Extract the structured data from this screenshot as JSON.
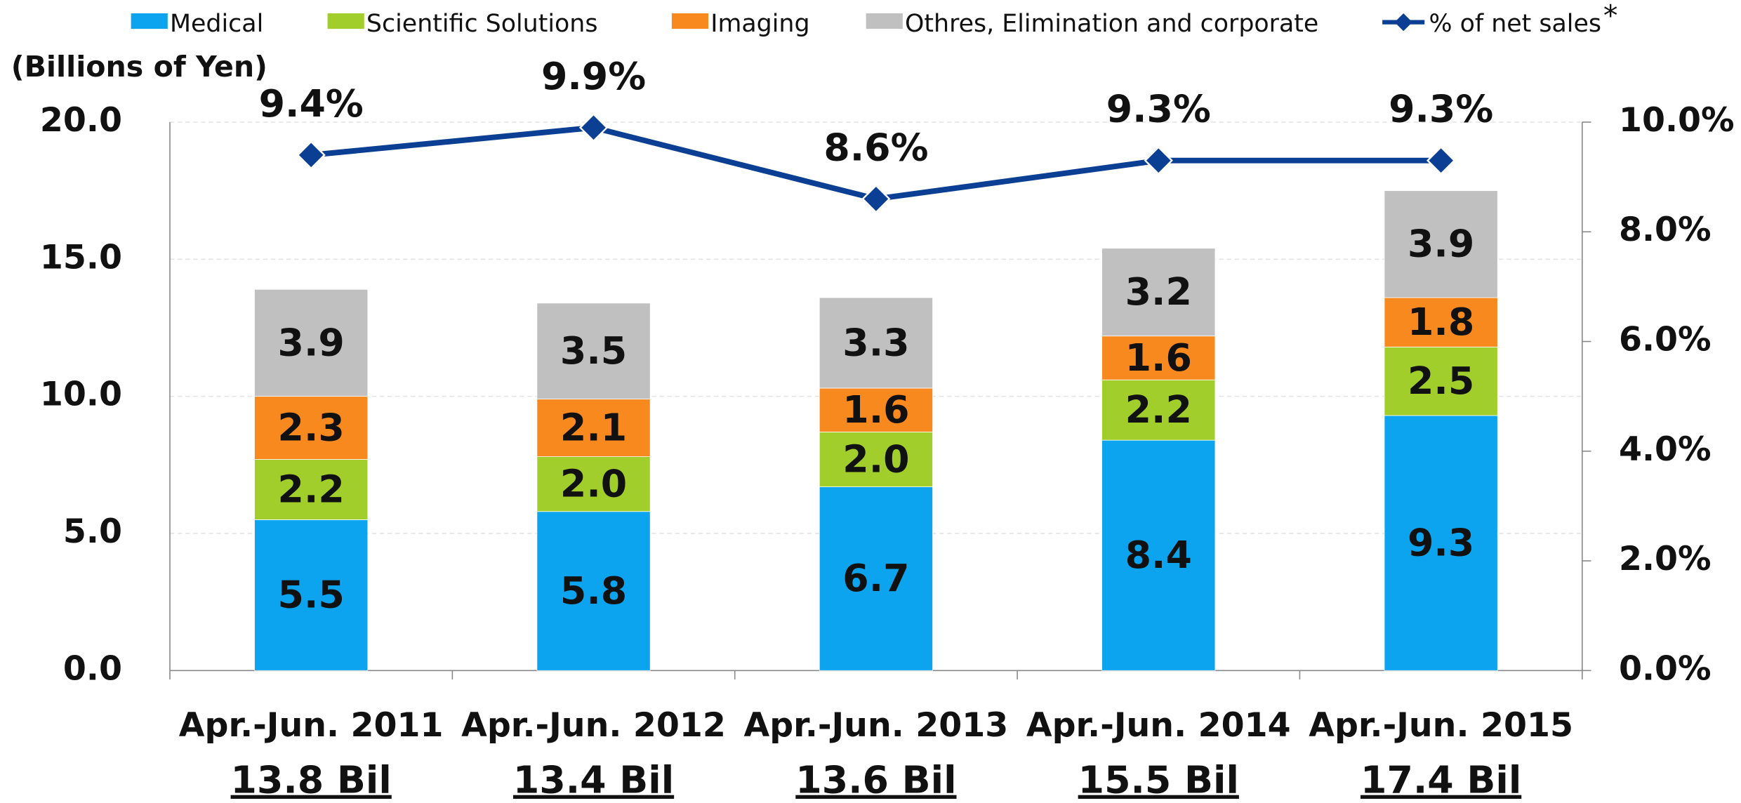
{
  "chart_data": {
    "type": "stacked_bar_line",
    "y_axis_label": "(Billions of Yen)",
    "categories": [
      "Apr.-Jun. 2011",
      "Apr.-Jun. 2012",
      "Apr.-Jun. 2013",
      "Apr.-Jun. 2014",
      "Apr.-Jun. 2015"
    ],
    "totals": [
      "13.8 Bil",
      "13.4 Bil",
      "13.6 Bil",
      "15.5 Bil",
      "17.4 Bil"
    ],
    "series": [
      {
        "name": "Medical",
        "color": "#0ca4ee",
        "values": [
          5.5,
          5.8,
          6.7,
          8.4,
          9.3
        ],
        "value_labels": [
          "5.5",
          "5.8",
          "6.7",
          "8.4",
          "9.3"
        ]
      },
      {
        "name": "Scientific Solutions",
        "color": "#a2ce2b",
        "values": [
          2.2,
          2.0,
          2.0,
          2.2,
          2.5
        ],
        "value_labels": [
          "2.2",
          "2.0",
          "2.0",
          "2.2",
          "2.5"
        ]
      },
      {
        "name": "Imaging",
        "color": "#f7891f",
        "values": [
          2.3,
          2.1,
          1.6,
          1.6,
          1.8
        ],
        "value_labels": [
          "2.3",
          "2.1",
          "1.6",
          "1.6",
          "1.8"
        ]
      },
      {
        "name": "Othres, Elimination and corporate",
        "color": "#c0c0c0",
        "values": [
          3.9,
          3.5,
          3.3,
          3.2,
          3.9
        ],
        "value_labels": [
          "3.9",
          "3.5",
          "3.3",
          "3.2",
          "3.9"
        ]
      },
      {
        "name": "% of net sales",
        "color": "#0b3f94",
        "axis": "y2",
        "type": "line",
        "values": [
          9.4,
          9.9,
          8.6,
          9.3,
          9.3
        ],
        "value_labels": [
          "9.4%",
          "9.9%",
          "8.6%",
          "9.3%",
          "9.3%"
        ]
      }
    ],
    "legend_note": "*",
    "ylim": [
      0,
      20
    ],
    "yticks": [
      {
        "value": 0,
        "label": "0.0"
      },
      {
        "value": 5,
        "label": "5.0"
      },
      {
        "value": 10,
        "label": "10.0"
      },
      {
        "value": 15,
        "label": "15.0"
      },
      {
        "value": 20,
        "label": "20.0"
      }
    ],
    "y2lim": [
      0,
      10
    ],
    "y2ticks": [
      {
        "value": 0,
        "label": "0.0%"
      },
      {
        "value": 2,
        "label": "2.0%"
      },
      {
        "value": 4,
        "label": "4.0%"
      },
      {
        "value": 6,
        "label": "6.0%"
      },
      {
        "value": 8,
        "label": "8.0%"
      },
      {
        "value": 10,
        "label": "10.0%"
      }
    ],
    "grid": true,
    "legend": "top"
  }
}
